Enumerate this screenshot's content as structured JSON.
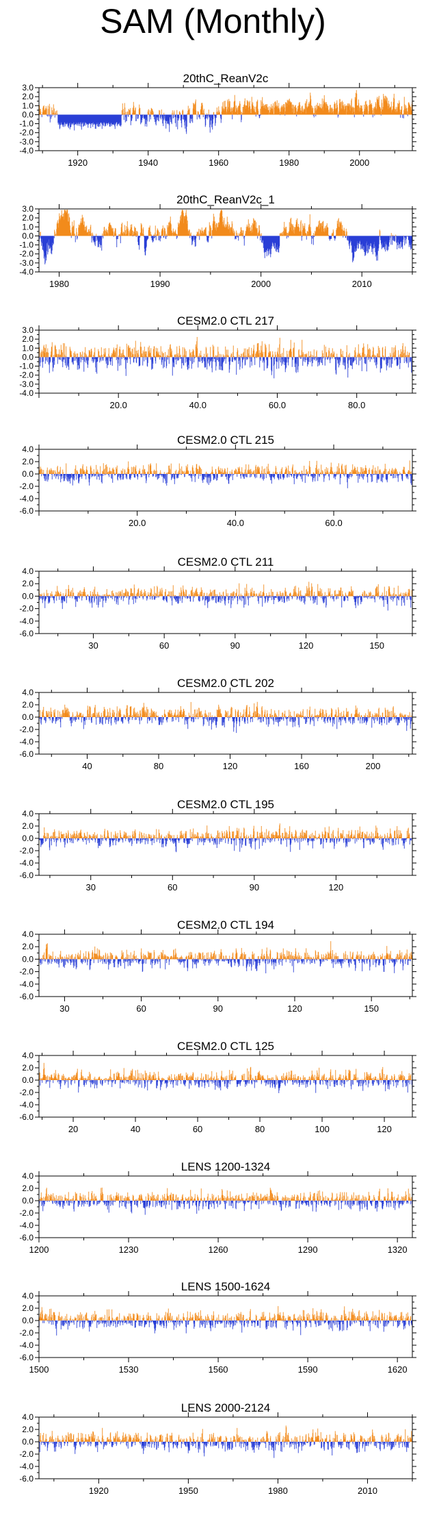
{
  "title": "SAM (Monthly)",
  "colors": {
    "positive": "#f28b1c",
    "negative": "#2a3fd6",
    "axis": "#000000"
  },
  "chart_data": [
    {
      "type": "bar",
      "title": "20thC_ReanV2c",
      "xlim": [
        1909,
        2015
      ],
      "xticks": [
        1920,
        1940,
        1960,
        1980,
        2000
      ],
      "ylim": [
        -4.0,
        3.0
      ],
      "yticks": [
        3.0,
        2.0,
        1.0,
        0.0,
        -1.0,
        -2.0,
        -3.0,
        -4.0
      ],
      "ytick_labels": [
        "3.0",
        "2.0",
        "1.0",
        "0.0",
        "-1.0",
        "-2.0",
        "-3.0",
        "-4.0"
      ],
      "seed": 11,
      "profile": "reanv2c"
    },
    {
      "type": "bar",
      "title": "20thC_ReanV2c_1",
      "xlim": [
        1978,
        2015
      ],
      "xticks": [
        1980,
        1990,
        2000,
        2010
      ],
      "ylim": [
        -4.0,
        3.0
      ],
      "yticks": [
        3.0,
        2.0,
        1.0,
        0.0,
        -1.0,
        -2.0,
        -3.0,
        -4.0
      ],
      "ytick_labels": [
        "3.0",
        "2.0",
        "1.0",
        "0.0",
        "-1.0",
        "-2.0",
        "-3.0",
        "-4.0"
      ],
      "seed": 23,
      "profile": "blocky"
    },
    {
      "type": "bar",
      "title": "CESM2.0 CTL 217",
      "xlim": [
        0,
        94
      ],
      "xticks": [
        20,
        40,
        60,
        80
      ],
      "xtick_labels": [
        "20.0",
        "40.0",
        "60.0",
        "80.0"
      ],
      "ylim": [
        -4.0,
        3.0
      ],
      "yticks": [
        3.0,
        2.0,
        1.0,
        0.0,
        -1.0,
        -2.0,
        -3.0,
        -4.0
      ],
      "ytick_labels": [
        "3.0",
        "2.0",
        "1.0",
        "0.0",
        "-1.0",
        "-2.0",
        "-3.0",
        "-4.0"
      ],
      "seed": 37,
      "profile": "noise"
    },
    {
      "type": "bar",
      "title": "CESM2.0 CTL 215",
      "xlim": [
        0,
        76
      ],
      "xticks": [
        20,
        40,
        60
      ],
      "xtick_labels": [
        "20.0",
        "40.0",
        "60.0"
      ],
      "ylim": [
        -6.0,
        4.0
      ],
      "yticks": [
        4.0,
        2.0,
        0.0,
        -2.0,
        -4.0,
        -6.0
      ],
      "ytick_labels": [
        "4.0",
        "2.0",
        "0.0",
        "-2.0",
        "-4.0",
        "-6.0"
      ],
      "seed": 41,
      "profile": "noise"
    },
    {
      "type": "bar",
      "title": "CESM2.0 CTL 211",
      "xlim": [
        7,
        165
      ],
      "xticks": [
        30,
        60,
        90,
        120,
        150
      ],
      "ylim": [
        -6.0,
        4.0
      ],
      "yticks": [
        4.0,
        2.0,
        0.0,
        -2.0,
        -4.0,
        -6.0
      ],
      "ytick_labels": [
        "4.0",
        "2.0",
        "0.0",
        "-2.0",
        "-4.0",
        "-6.0"
      ],
      "seed": 53,
      "profile": "noise"
    },
    {
      "type": "bar",
      "title": "CESM2.0 CTL 202",
      "xlim": [
        13,
        222
      ],
      "xticks": [
        40,
        80,
        120,
        160,
        200
      ],
      "ylim": [
        -6.0,
        4.0
      ],
      "yticks": [
        4.0,
        2.0,
        0.0,
        -2.0,
        -4.0,
        -6.0
      ],
      "ytick_labels": [
        "4.0",
        "2.0",
        "0.0",
        "-2.0",
        "-4.0",
        "-6.0"
      ],
      "seed": 67,
      "profile": "noise"
    },
    {
      "type": "bar",
      "title": "CESM2.0 CTL 195",
      "xlim": [
        11,
        148
      ],
      "xticks": [
        30,
        60,
        90,
        120
      ],
      "ylim": [
        -6.0,
        4.0
      ],
      "yticks": [
        4.0,
        2.0,
        0.0,
        -2.0,
        -4.0,
        -6.0
      ],
      "ytick_labels": [
        "4.0",
        "2.0",
        "0.0",
        "-2.0",
        "-4.0",
        "-6.0"
      ],
      "seed": 71,
      "profile": "noise"
    },
    {
      "type": "bar",
      "title": "CESM2.0 CTL 194",
      "xlim": [
        20,
        166
      ],
      "xticks": [
        30,
        60,
        90,
        120,
        150
      ],
      "ylim": [
        -6.0,
        4.0
      ],
      "yticks": [
        4.0,
        2.0,
        0.0,
        -2.0,
        -4.0,
        -6.0
      ],
      "ytick_labels": [
        "4.0",
        "2.0",
        "0.0",
        "-2.0",
        "-4.0",
        "-6.0"
      ],
      "seed": 83,
      "profile": "noise"
    },
    {
      "type": "bar",
      "title": "CESM2.0 CTL 125",
      "xlim": [
        9,
        129
      ],
      "xticks": [
        20,
        40,
        60,
        80,
        100,
        120
      ],
      "ylim": [
        -6.0,
        4.0
      ],
      "yticks": [
        4.0,
        2.0,
        0.0,
        -2.0,
        -4.0,
        -6.0
      ],
      "ytick_labels": [
        "4.0",
        "2.0",
        "0.0",
        "-2.0",
        "-4.0",
        "-6.0"
      ],
      "seed": 97,
      "profile": "noise"
    },
    {
      "type": "bar",
      "title": "LENS 1200-1324",
      "xlim": [
        1200,
        1325
      ],
      "xticks": [
        1200,
        1230,
        1260,
        1290,
        1320
      ],
      "ylim": [
        -6.0,
        4.0
      ],
      "yticks": [
        4.0,
        2.0,
        0.0,
        -2.0,
        -4.0,
        -6.0
      ],
      "ytick_labels": [
        "4.0",
        "2.0",
        "0.0",
        "-2.0",
        "-4.0",
        "-6.0"
      ],
      "seed": 101,
      "profile": "noise"
    },
    {
      "type": "bar",
      "title": "LENS 1500-1624",
      "xlim": [
        1500,
        1625
      ],
      "xticks": [
        1500,
        1530,
        1560,
        1590,
        1620
      ],
      "ylim": [
        -6.0,
        4.0
      ],
      "yticks": [
        4.0,
        2.0,
        0.0,
        -2.0,
        -4.0,
        -6.0
      ],
      "ytick_labels": [
        "4.0",
        "2.0",
        "0.0",
        "-2.0",
        "-4.0",
        "-6.0"
      ],
      "seed": 113,
      "profile": "noise"
    },
    {
      "type": "bar",
      "title": "LENS 2000-2124",
      "xlim": [
        1900,
        2025
      ],
      "xticks": [
        1920,
        1950,
        1980,
        2010
      ],
      "ylim": [
        -6.0,
        4.0
      ],
      "yticks": [
        4.0,
        2.0,
        0.0,
        -2.0,
        -4.0,
        -6.0
      ],
      "ytick_labels": [
        "4.0",
        "2.0",
        "0.0",
        "-2.0",
        "-4.0",
        "-6.0"
      ],
      "seed": 127,
      "profile": "noise"
    }
  ]
}
